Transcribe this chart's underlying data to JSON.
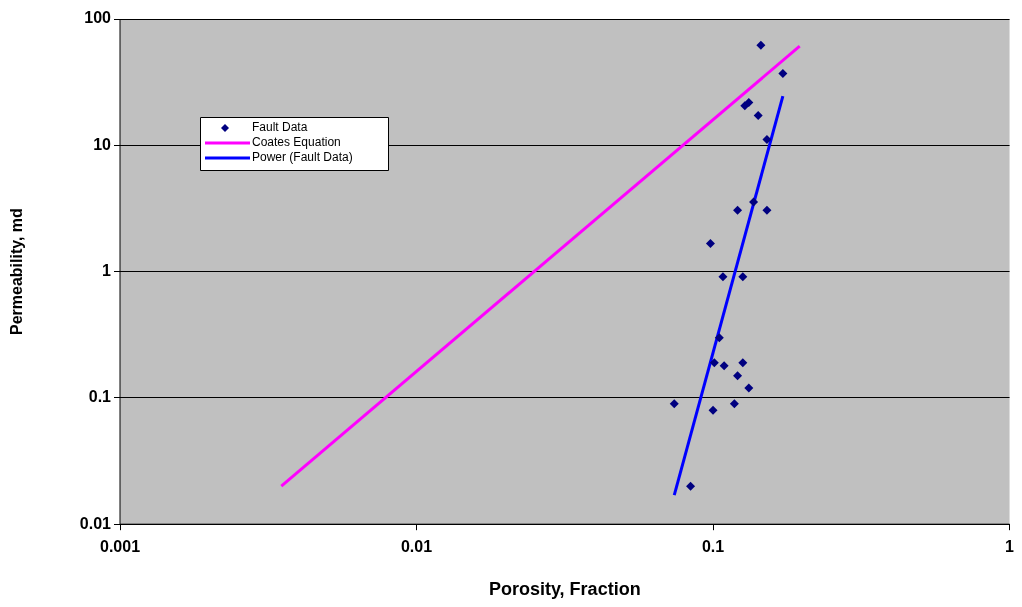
{
  "chart_data": {
    "type": "scatter",
    "xlabel": "Porosity, Fraction",
    "ylabel": "Permeability, md",
    "log": "xy",
    "xlim": [
      0.001,
      1
    ],
    "xticks": [
      0.001,
      0.01,
      0.1,
      1
    ],
    "ylim": [
      0.01,
      100
    ],
    "yticks": [
      0.01,
      0.1,
      1,
      10,
      100
    ],
    "grid": "y",
    "legend": "top left",
    "series": [
      {
        "name": "Fault Data",
        "type": "scatter",
        "marker": "diamond",
        "color": "#000080",
        "x": [
          0.145,
          0.172,
          0.128,
          0.132,
          0.142,
          0.152,
          0.137,
          0.121,
          0.152,
          0.098,
          0.108,
          0.126,
          0.105,
          0.101,
          0.109,
          0.126,
          0.121,
          0.132,
          0.074,
          0.1,
          0.118,
          0.084
        ],
        "values": [
          62,
          37,
          20.6,
          21.8,
          17.2,
          11.1,
          3.55,
          3.06,
          3.06,
          1.67,
          0.91,
          0.91,
          0.3,
          0.19,
          0.18,
          0.19,
          0.15,
          0.12,
          0.09,
          0.08,
          0.09,
          0.02
        ]
      },
      {
        "name": "Coates Equation",
        "type": "line",
        "marker": "none",
        "color": "#ff00ff",
        "x": [
          0.0035,
          0.196
        ],
        "values": [
          0.02,
          61
        ]
      },
      {
        "name": "Power (Fault Data)",
        "type": "line",
        "marker": "none",
        "color": "#0000ff",
        "x": [
          0.074,
          0.172
        ],
        "values": [
          0.017,
          24.5
        ]
      }
    ]
  }
}
